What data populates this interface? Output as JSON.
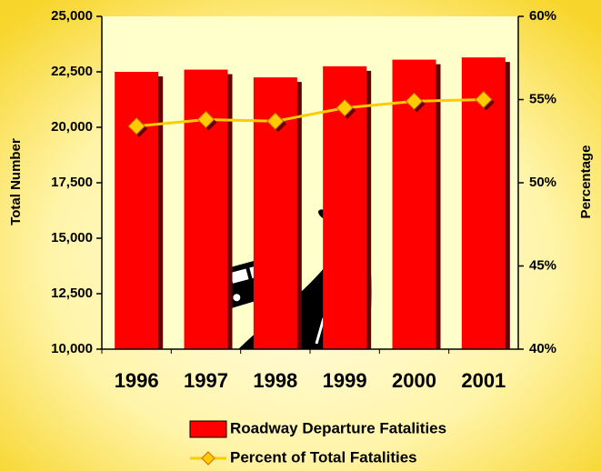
{
  "chart_data": {
    "type": "bar",
    "categories": [
      "1996",
      "1997",
      "1998",
      "1999",
      "2000",
      "2001"
    ],
    "series": [
      {
        "name": "Roadway Departure Fatalities",
        "type": "bar",
        "color": "#ff0000",
        "values": [
          22500,
          22600,
          22250,
          22750,
          23050,
          23150
        ]
      },
      {
        "name": "Percent of Total Fatalities",
        "type": "line",
        "axis": "y2",
        "color": "#ffcc00",
        "values": [
          53.4,
          53.8,
          53.7,
          54.5,
          54.9,
          55.0
        ]
      }
    ],
    "ylabel": "Total Number",
    "y2label": "Percentage",
    "ylim": [
      10000,
      25000
    ],
    "yticks": [
      {
        "value": 10000,
        "label": "10,000"
      },
      {
        "value": 12500,
        "label": "12,500"
      },
      {
        "value": 15000,
        "label": "15,000"
      },
      {
        "value": 17500,
        "label": "17,500"
      },
      {
        "value": 20000,
        "label": "20,000"
      },
      {
        "value": 22500,
        "label": "22,500"
      },
      {
        "value": 25000,
        "label": "25,000"
      }
    ],
    "y2lim": [
      40,
      60
    ],
    "y2ticks": [
      {
        "value": 40,
        "label": "40%"
      },
      {
        "value": 45,
        "label": "45%"
      },
      {
        "value": 50,
        "label": "50%"
      },
      {
        "value": 55,
        "label": "55%"
      },
      {
        "value": 60,
        "label": "60%"
      }
    ],
    "grid": false
  }
}
